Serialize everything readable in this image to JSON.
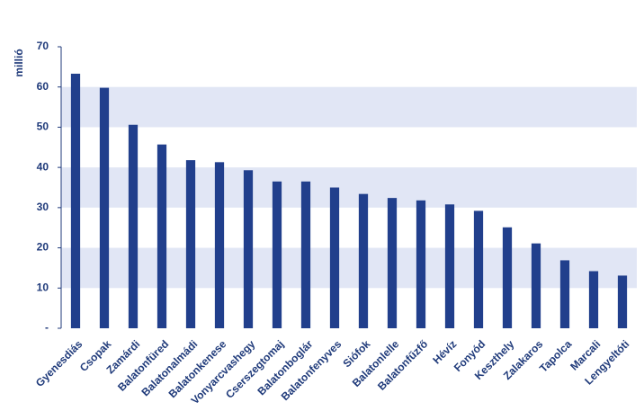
{
  "chart_data": {
    "type": "bar",
    "y_label": "millió",
    "categories": [
      "Gyenesdiás",
      "Csopak",
      "Zamárdi",
      "Balatonfüred",
      "Balatonalmádi",
      "Balatonkenese",
      "Vonyarcvashegy",
      "Cserszegtomaj",
      "Balatonboglár",
      "Balatonfenyves",
      "Siófok",
      "Balatonlelle",
      "Balatonfűzfő",
      "Hévíz",
      "Fonyód",
      "Keszthely",
      "Zalakaros",
      "Tapolca",
      "Marcali",
      "Lengyeltóti"
    ],
    "values": [
      63.3,
      59.8,
      50.6,
      45.7,
      41.8,
      41.3,
      39.3,
      36.5,
      36.5,
      35.0,
      33.4,
      32.4,
      31.8,
      30.8,
      29.2,
      25.1,
      21.1,
      16.9,
      14.2,
      13.1
    ],
    "color": "#213f8c",
    "band_color": "#e1e6f5",
    "ylim": [
      0,
      70
    ],
    "yticks": [
      {
        "value": 0,
        "label": "-"
      },
      10,
      20,
      30,
      40,
      50,
      60,
      70
    ],
    "grid": "bands"
  }
}
